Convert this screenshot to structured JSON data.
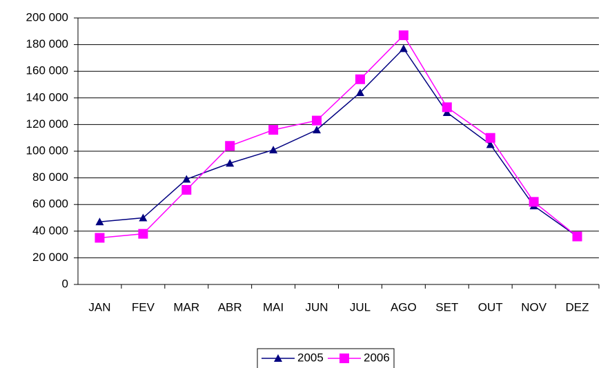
{
  "chart_data": {
    "type": "line",
    "categories": [
      "JAN",
      "FEV",
      "MAR",
      "ABR",
      "MAI",
      "JUN",
      "JUL",
      "AGO",
      "SET",
      "OUT",
      "NOV",
      "DEZ"
    ],
    "series": [
      {
        "name": "2005",
        "color": "#000080",
        "marker": "triangle",
        "values": [
          47000,
          50000,
          79000,
          91000,
          101000,
          116000,
          144000,
          177000,
          129000,
          105000,
          59000,
          36000
        ]
      },
      {
        "name": "2006",
        "color": "#ff00ff",
        "marker": "square",
        "values": [
          35000,
          38000,
          71000,
          104000,
          116000,
          123000,
          154000,
          187000,
          133000,
          110000,
          62000,
          36000
        ]
      }
    ],
    "ylim": [
      0,
      200000
    ],
    "yticks": [
      {
        "value": 0,
        "label": "0"
      },
      {
        "value": 20000,
        "label": "20 000"
      },
      {
        "value": 40000,
        "label": "40 000"
      },
      {
        "value": 60000,
        "label": "60 000"
      },
      {
        "value": 80000,
        "label": "80 000"
      },
      {
        "value": 100000,
        "label": "100 000"
      },
      {
        "value": 120000,
        "label": "120 000"
      },
      {
        "value": 140000,
        "label": "140 000"
      },
      {
        "value": 160000,
        "label": "160 000"
      },
      {
        "value": 180000,
        "label": "180 000"
      },
      {
        "value": 200000,
        "label": "200 000"
      }
    ],
    "grid": true,
    "legend": "bottom"
  }
}
